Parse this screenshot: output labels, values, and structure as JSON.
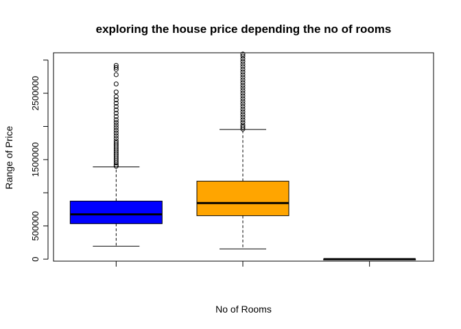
{
  "chart_data": {
    "type": "boxplot",
    "title": "exploring the house price depending the no of rooms",
    "xlabel": "No of Rooms",
    "ylabel": "Range of Price",
    "ylim": [
      -30000,
      3110000
    ],
    "y_ticks": [
      0,
      500000,
      1500000,
      2500000
    ],
    "y_tick_labels": [
      "0",
      "500000",
      "1500000",
      "2500000"
    ],
    "grid": false,
    "legend": "none",
    "boxes": [
      {
        "color": "#0000FF",
        "whisker_low": 195000,
        "q1": 535000,
        "median": 675000,
        "q3": 875000,
        "whisker_high": 1390000,
        "outliers": [
          1400000,
          1420000,
          1450000,
          1480000,
          1510000,
          1540000,
          1570000,
          1600000,
          1630000,
          1660000,
          1690000,
          1720000,
          1750000,
          1780000,
          1820000,
          1860000,
          1900000,
          1940000,
          1980000,
          2020000,
          2060000,
          2100000,
          2150000,
          2200000,
          2250000,
          2300000,
          2350000,
          2400000,
          2450000,
          2520000,
          2640000,
          2780000,
          2860000,
          2890000,
          2920000
        ]
      },
      {
        "color": "#FFA500",
        "whisker_low": 155000,
        "q1": 655000,
        "median": 845000,
        "q3": 1175000,
        "whisker_high": 1955000,
        "outliers": [
          1960000,
          1990000,
          2020000,
          2060000,
          2100000,
          2140000,
          2180000,
          2220000,
          2260000,
          2300000,
          2340000,
          2380000,
          2420000,
          2460000,
          2500000,
          2540000,
          2580000,
          2620000,
          2660000,
          2700000,
          2740000,
          2780000,
          2820000,
          2860000,
          2900000,
          2940000,
          2980000,
          3020000,
          3060000,
          3090000
        ]
      },
      {
        "color": "#000000",
        "whisker_low": 0,
        "q1": 0,
        "median": 0,
        "q3": 0,
        "whisker_high": 0,
        "outliers": []
      }
    ]
  }
}
